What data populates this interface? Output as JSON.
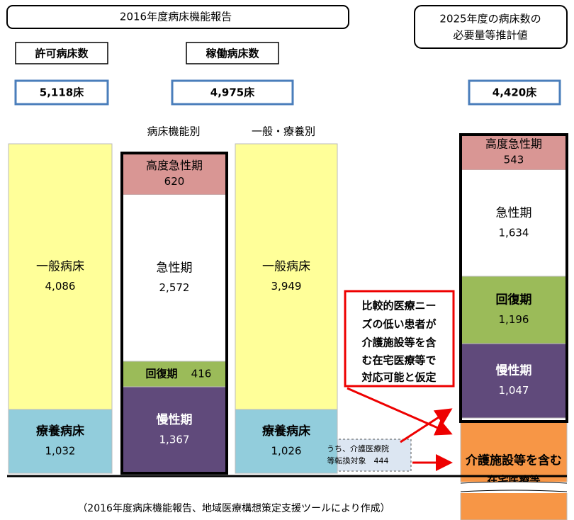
{
  "header": {
    "title": "2016年度病床機能報告",
    "estimate_title": [
      "2025年度の病床数の",
      "必要量等推計値"
    ]
  },
  "totals": [
    {
      "label": "許可病床数",
      "value": "5,118床"
    },
    {
      "label": "稼働病床数",
      "value": "4,975床"
    },
    {
      "value": "4,420床"
    }
  ],
  "column_headers": [
    "病床機能別",
    "一般・療養別"
  ],
  "columns": [
    {
      "segments": [
        {
          "label": "一般病床",
          "value": "4,086"
        },
        {
          "label": "療養病床",
          "value": "1,032"
        }
      ]
    },
    {
      "segments": [
        {
          "label": "高度急性期",
          "value": "620"
        },
        {
          "label": "急性期",
          "value": "2,572"
        },
        {
          "label": "回復期",
          "value": "416"
        },
        {
          "label": "慢性期",
          "value": "1,367"
        }
      ]
    },
    {
      "segments": [
        {
          "label": "一般病床",
          "value": "3,949"
        },
        {
          "label": "療養病床",
          "value": "1,026"
        }
      ]
    },
    {
      "segments": [
        {
          "label": "高度急性期",
          "value": "543"
        },
        {
          "label": "急性期",
          "value": "1,634"
        },
        {
          "label": "回復期",
          "value": "1,196"
        },
        {
          "label": "慢性期",
          "value": "1,047"
        },
        {
          "label": "介護施設等を含む",
          "value": "在宅医療等"
        }
      ]
    }
  ],
  "note": [
    "比較的医療ニー",
    "ズの低い患者が",
    "介護施設等を含",
    "む在宅医療等で",
    "対応可能と仮定"
  ],
  "conversion": [
    "うち、介護医療院",
    "等転換対象　444"
  ],
  "footnote": "（2016年度病床機能報告、地域医療構想策定支援ツールにより作成）"
}
